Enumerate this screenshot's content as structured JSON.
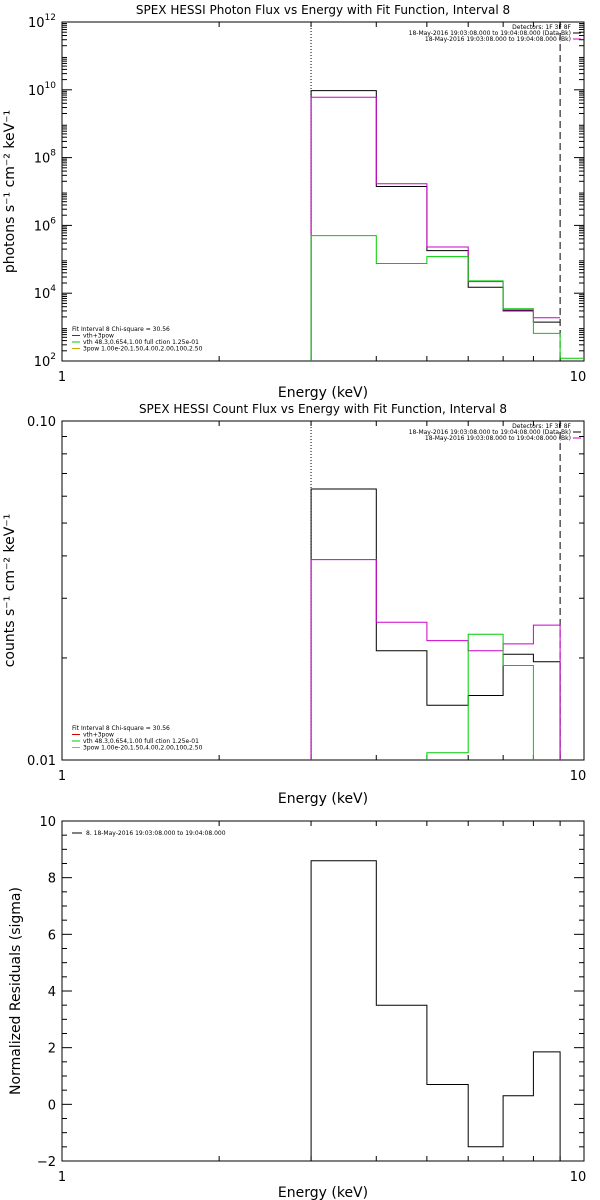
{
  "chart_data": [
    {
      "type": "line",
      "title": "SPEX HESSI Photon Flux vs Energy with Fit Function, Interval 8",
      "xlabel": "Energy (keV)",
      "ylabel": "photons s⁻¹ cm⁻² keV⁻¹",
      "xscale": "log",
      "yscale": "log",
      "xlim": [
        1,
        10
      ],
      "ylim": [
        100,
        1000000000000.0
      ],
      "x_ticks": [
        {
          "v": 1,
          "label": "1"
        },
        {
          "v": 10,
          "label": "10"
        }
      ],
      "y_ticks": [
        {
          "v": 100,
          "base": "10",
          "exp": "2"
        },
        {
          "v": 10000,
          "base": "10",
          "exp": "4"
        },
        {
          "v": 1000000,
          "base": "10",
          "exp": "6"
        },
        {
          "v": 100000000,
          "base": "10",
          "exp": "8"
        },
        {
          "v": 10000000000,
          "base": "10",
          "exp": "10"
        },
        {
          "v": 1000000000000,
          "base": "10",
          "exp": "12"
        }
      ],
      "vlines": [
        {
          "x": 3.0,
          "style": "dotted"
        },
        {
          "x": 9.0,
          "style": "dashed"
        }
      ],
      "legend_top": [
        {
          "text": "Detectors: 1F 3F 8F",
          "color": ""
        },
        {
          "text": "18-May-2016 19:03:08.000 to 19:04:08.000 (Data-Bk)",
          "color": "#000000"
        },
        {
          "text": "18-May-2016 19:03:08.000 to 19:04:08.000 (Bk)",
          "color": "#cc00cc"
        }
      ],
      "legend_bottom": [
        {
          "text": "Fit Interval 8   Chi-square = 30.56",
          "color": ""
        },
        {
          "text": "vth+3pow",
          "color": "#cc0000"
        },
        {
          "text": "vth 48.3,0.654,1.00  full ction 1.25e-01",
          "color": "#00cc00"
        },
        {
          "text": "3pow 1.00e-20,1.50,4.00,2.00,100,2.50",
          "color": "#ccaa00"
        }
      ],
      "series": [
        {
          "color": "#000000",
          "edges": [
            3,
            4,
            5,
            6,
            7,
            8,
            9
          ],
          "values": [
            9500000000.0,
            14000000.0,
            180000.0,
            15000.0,
            3000.0,
            1400.0
          ],
          "drop_start": true
        },
        {
          "color": "#cc00cc",
          "edges": [
            3,
            4,
            5,
            6,
            7,
            8,
            9
          ],
          "values": [
            6000000000.0,
            17000000.0,
            230000.0,
            22000.0,
            3200.0,
            1900.0
          ],
          "drop_start": true
        },
        {
          "color": "#00cc00",
          "edges": [
            3,
            4,
            5,
            6,
            7,
            8,
            9,
            10
          ],
          "values": [
            500000.0,
            75000.0,
            120000.0,
            23000.0,
            3500.0,
            650.0,
            120.0
          ],
          "drop_start": true
        }
      ]
    },
    {
      "type": "line",
      "title": "SPEX HESSI Count Flux vs Energy with Fit Function, Interval 8",
      "xlabel": "Energy (keV)",
      "ylabel": "counts s⁻¹ cm⁻² keV⁻¹",
      "xscale": "log",
      "yscale": "log",
      "xlim": [
        1,
        10
      ],
      "ylim": [
        0.01,
        0.1
      ],
      "x_ticks": [
        {
          "v": 1,
          "label": "1"
        },
        {
          "v": 10,
          "label": "10"
        }
      ],
      "y_ticks": [
        {
          "v": 0.01,
          "label": "0.01"
        },
        {
          "v": 0.1,
          "label": "0.10"
        }
      ],
      "vlines": [
        {
          "x": 3.0,
          "style": "dotted"
        },
        {
          "x": 9.0,
          "style": "dashed"
        }
      ],
      "legend_top": [
        {
          "text": "Detectors: 1F 3F 8F",
          "color": ""
        },
        {
          "text": "18-May-2016 19:03:08.000 to 19:04:08.000 (Data-Bk)",
          "color": "#000000"
        },
        {
          "text": "18-May-2016 19:03:08.000 to 19:04:08.000 (Bk)",
          "color": "#cc00cc"
        }
      ],
      "legend_bottom": [
        {
          "text": "Fit Interval 8   Chi-square = 30.56",
          "color": ""
        },
        {
          "text": "vth+3pow",
          "color": "#cc0000"
        },
        {
          "text": "vth 48.3,0.654,1.00  full ction 1.25e-01",
          "color": "#00cc00"
        },
        {
          "text": "3pow 1.00e-20,1.50,4.00,2.00,100,2.50",
          "color": "#ccaa00"
        }
      ],
      "series": [
        {
          "color": "#000000",
          "edges": [
            3,
            4,
            5,
            6,
            7,
            8,
            9
          ],
          "values": [
            0.063,
            0.021,
            0.0145,
            0.0155,
            0.0205,
            0.0195
          ],
          "drop_start": true,
          "drop_end": true
        },
        {
          "color": "#cc00cc",
          "edges": [
            3,
            4,
            5,
            6,
            7,
            8,
            9
          ],
          "values": [
            0.039,
            0.0255,
            0.0225,
            0.021,
            0.022,
            0.025
          ],
          "drop_start": true,
          "drop_end": true
        },
        {
          "color": "#00cc00",
          "edges": [
            5,
            6,
            7,
            8
          ],
          "values": [
            0.0105,
            0.0235,
            0.019
          ],
          "rise_start": true,
          "drop_end": true
        }
      ]
    },
    {
      "type": "line",
      "title": "",
      "xlabel": "Energy (keV)",
      "ylabel": "Normalized Residuals (sigma)",
      "xscale": "log",
      "yscale": "linear",
      "xlim": [
        1,
        10
      ],
      "ylim": [
        -2,
        10
      ],
      "x_ticks": [
        {
          "v": 1,
          "label": "1"
        },
        {
          "v": 10,
          "label": "10"
        }
      ],
      "y_ticks": [
        {
          "v": -2,
          "label": "−2"
        },
        {
          "v": 0,
          "label": "0"
        },
        {
          "v": 2,
          "label": "2"
        },
        {
          "v": 4,
          "label": "4"
        },
        {
          "v": 6,
          "label": "6"
        },
        {
          "v": 8,
          "label": "8"
        },
        {
          "v": 10,
          "label": "10"
        }
      ],
      "vlines": [],
      "legend_top": [
        {
          "text": "8. 18-May-2016 19:03:08.000 to 19:04:08.000",
          "color": "#000000"
        }
      ],
      "legend_bottom": [],
      "series": [
        {
          "color": "#000000",
          "edges": [
            3,
            4,
            5,
            6,
            7,
            8,
            9
          ],
          "values": [
            8.6,
            3.5,
            0.7,
            -1.5,
            0.3,
            1.85
          ],
          "drop_start": true,
          "drop_end": true
        }
      ]
    }
  ]
}
